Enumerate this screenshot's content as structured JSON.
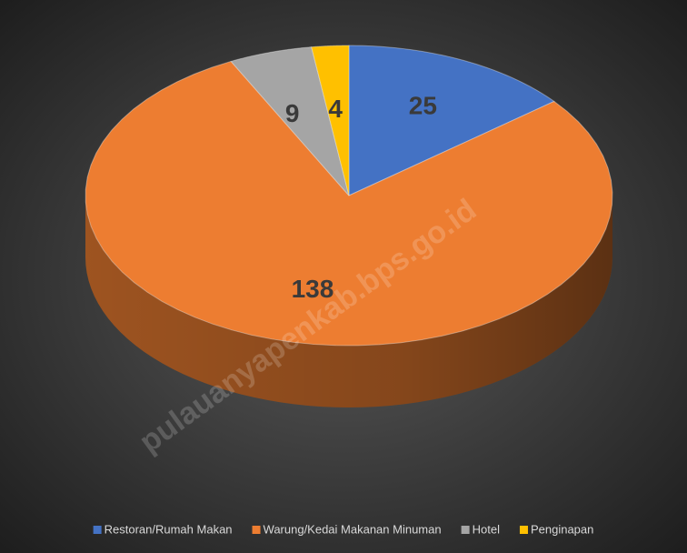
{
  "chart_data": {
    "type": "pie",
    "categories": [
      "Restoran/Rumah Makan",
      "Warung/Kedai Makanan Minuman",
      "Hotel",
      "Penginapan"
    ],
    "values": [
      25,
      138,
      9,
      4
    ],
    "colors": [
      "#4472c4",
      "#ed7d31",
      "#a5a5a5",
      "#ffc000"
    ],
    "watermark": "pulauanyapenkab.bps.go.id"
  }
}
